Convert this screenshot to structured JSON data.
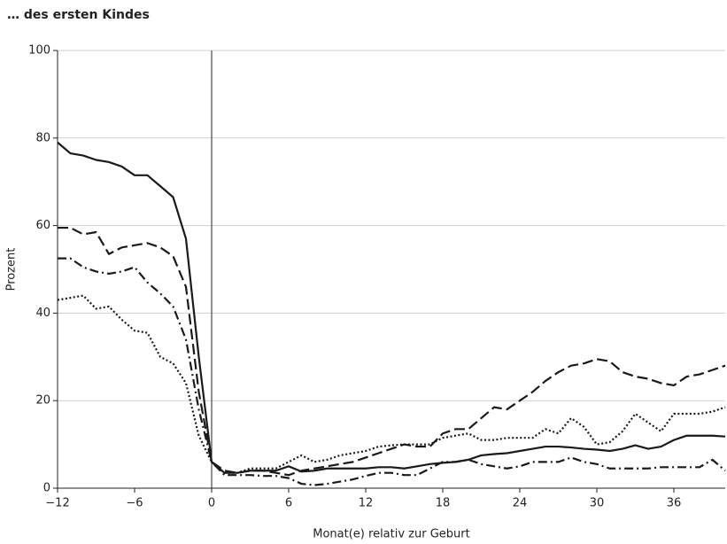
{
  "chart_data": {
    "type": "line",
    "title": "… des ersten Kindes",
    "xlabel": "Monat(e) relativ zur Geburt",
    "ylabel": "Prozent",
    "x": [
      -12,
      -11,
      -10,
      -9,
      -8,
      -7,
      -6,
      -5,
      -4,
      -3,
      -2,
      -1,
      0,
      1,
      2,
      3,
      4,
      5,
      6,
      7,
      8,
      9,
      10,
      11,
      12,
      13,
      14,
      15,
      16,
      17,
      18,
      19,
      20,
      21,
      22,
      23,
      24,
      25,
      26,
      27,
      28,
      29,
      30,
      31,
      32,
      33,
      34,
      35,
      36,
      37,
      38,
      39,
      40
    ],
    "series": [
      {
        "color": "#1a1a1a",
        "dash": "solid",
        "values": [
          79,
          76.5,
          76,
          75,
          74.5,
          73.5,
          71.5,
          71.5,
          69,
          66.5,
          57,
          30,
          6,
          3.5,
          3.5,
          4,
          4,
          4,
          5,
          3.8,
          4,
          4.5,
          4.5,
          4.5,
          4.5,
          4.8,
          4.8,
          4.5,
          5,
          5.5,
          5.8,
          6,
          6.5,
          7.5,
          7.8,
          8,
          8.5,
          9,
          9.5,
          9.5,
          9.3,
          9,
          8.8,
          8.5,
          9,
          9.8,
          9,
          9.5,
          11,
          12,
          12,
          12,
          11.8
        ]
      },
      {
        "color": "#1a1a1a",
        "dash": "dashed",
        "values": [
          59.5,
          59.5,
          58,
          58.5,
          53.5,
          55,
          55.5,
          56,
          55,
          53,
          46,
          22,
          6,
          4,
          3.5,
          4,
          4,
          3.5,
          3,
          4,
          4.5,
          5,
          5.5,
          6,
          7,
          8,
          9,
          10,
          9.5,
          9.5,
          12.5,
          13.5,
          13.5,
          16,
          18.5,
          18,
          20,
          22,
          24.5,
          26.5,
          28,
          28.5,
          29.5,
          29,
          26.5,
          25.5,
          25,
          24,
          23.5,
          25.5,
          26,
          27,
          28
        ]
      },
      {
        "color": "#1a1a1a",
        "dash": "dashdot",
        "values": [
          52.5,
          52.5,
          50.5,
          49.5,
          49,
          49.5,
          50.5,
          47,
          44.5,
          41.5,
          34,
          18,
          6,
          3,
          3,
          3,
          2.8,
          2.8,
          2.3,
          1,
          0.7,
          1,
          1.5,
          2,
          2.8,
          3.5,
          3.5,
          3,
          3,
          4.5,
          6,
          6,
          6.5,
          5.5,
          5,
          4.5,
          5,
          6,
          6,
          6,
          7,
          6,
          5.5,
          4.5,
          4.5,
          4.5,
          4.5,
          4.8,
          4.8,
          4.8,
          4.8,
          6.5,
          4
        ]
      },
      {
        "color": "#1a1a1a",
        "dash": "dotted",
        "values": [
          43,
          43.5,
          44,
          41,
          41.5,
          38.5,
          36,
          35.5,
          30,
          28.5,
          24,
          12,
          6,
          3.5,
          3.5,
          4.5,
          4.5,
          4.5,
          6,
          7.5,
          6,
          6.5,
          7.5,
          8,
          8.5,
          9.5,
          9.8,
          10,
          10,
          10,
          11.5,
          12,
          12.5,
          11,
          11,
          11.5,
          11.5,
          11.5,
          13.5,
          12.5,
          16,
          14,
          10,
          10.5,
          13,
          17,
          15,
          13,
          17,
          17,
          17,
          17.5,
          18.5
        ]
      }
    ],
    "xlim": [
      -12,
      40
    ],
    "xticks": [
      {
        "value": -12,
        "label": "−12"
      },
      {
        "value": -6,
        "label": "−6"
      },
      0,
      6,
      12,
      18,
      24,
      30,
      36
    ],
    "ylim": [
      0,
      100
    ],
    "yticks": [
      0,
      20,
      40,
      60,
      80,
      100
    ],
    "grid": true,
    "vline": 0
  }
}
